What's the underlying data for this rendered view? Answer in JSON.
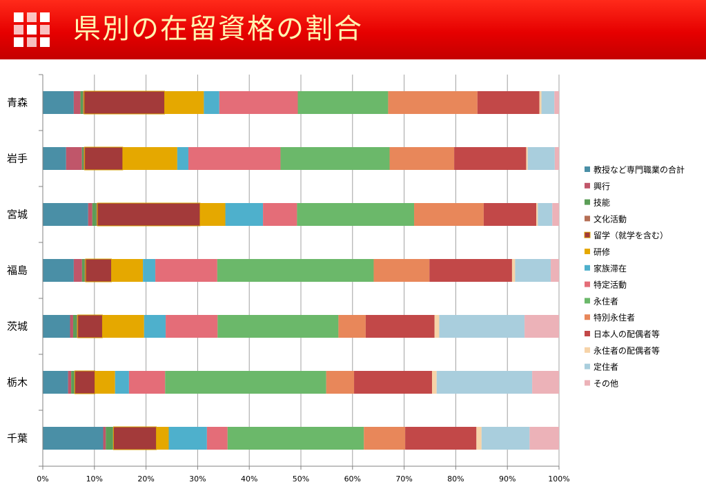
{
  "header": {
    "title": "県別の在留資格の割合"
  },
  "colors": {
    "banner": "#e60000",
    "title_text": "#fff3b0"
  },
  "chart_data": {
    "type": "bar",
    "orientation": "horizontal",
    "stacked": true,
    "normalized_percent": true,
    "title": "県別の在留資格の割合",
    "xlim": [
      0,
      100
    ],
    "x_ticks": [
      "0%",
      "10%",
      "20%",
      "30%",
      "40%",
      "50%",
      "60%",
      "70%",
      "80%",
      "90%",
      "100%"
    ],
    "grid": true,
    "legend_position": "right",
    "categories": [
      "青森",
      "岩手",
      "宮城",
      "福島",
      "茨城",
      "栃木",
      "千葉"
    ],
    "series": [
      {
        "name": "教授など専門職業の合計",
        "color": "#4a8fa6",
        "values": [
          6.0,
          4.4,
          8.8,
          6.0,
          5.3,
          4.9,
          11.7
        ]
      },
      {
        "name": "興行",
        "color": "#c0566a",
        "values": [
          1.3,
          3.0,
          0.8,
          1.6,
          0.6,
          0.6,
          0.5
        ]
      },
      {
        "name": "技能",
        "color": "#5b9e57",
        "values": [
          0.5,
          0.3,
          0.8,
          0.5,
          0.7,
          0.6,
          1.4
        ]
      },
      {
        "name": "文化活動",
        "color": "#b56e55",
        "values": [
          0.2,
          0.2,
          0.2,
          0.2,
          0.2,
          0.1,
          0.1
        ]
      },
      {
        "name": "留学（就学を含む）",
        "color": "#a33a3a",
        "values": [
          15.6,
          7.2,
          19.9,
          5.0,
          4.8,
          3.9,
          8.3
        ]
      },
      {
        "name": "研修",
        "color": "#e5a800",
        "values": [
          7.6,
          10.3,
          4.9,
          6.1,
          8.1,
          3.9,
          2.4
        ]
      },
      {
        "name": "家族滞在",
        "color": "#4eb0cc",
        "values": [
          3.0,
          2.1,
          7.3,
          2.4,
          4.2,
          2.7,
          7.4
        ]
      },
      {
        "name": "特定活動",
        "color": "#e46d78",
        "values": [
          15.2,
          17.4,
          6.6,
          12.0,
          10.1,
          7.0,
          4.0
        ]
      },
      {
        "name": "永住者",
        "color": "#6bb86a",
        "values": [
          17.5,
          20.6,
          22.7,
          30.3,
          23.5,
          31.2,
          26.4
        ]
      },
      {
        "name": "特別永住者",
        "color": "#e8875a",
        "values": [
          17.3,
          12.2,
          13.5,
          10.8,
          5.3,
          5.4,
          8.0
        ]
      },
      {
        "name": "日本人の配偶者等",
        "color": "#c24848",
        "values": [
          12.0,
          13.6,
          10.2,
          16.0,
          13.4,
          15.1,
          13.8
        ]
      },
      {
        "name": "永住者の配偶者等",
        "color": "#f6d3a8",
        "values": [
          0.4,
          0.3,
          0.3,
          0.6,
          0.9,
          0.9,
          1.0
        ]
      },
      {
        "name": "定住者",
        "color": "#a9cedd",
        "values": [
          2.5,
          5.1,
          2.8,
          6.9,
          16.6,
          18.5,
          9.3
        ]
      },
      {
        "name": "その他",
        "color": "#ecb2b8",
        "values": [
          0.9,
          0.8,
          1.3,
          1.6,
          6.7,
          5.2,
          5.7
        ]
      }
    ]
  }
}
